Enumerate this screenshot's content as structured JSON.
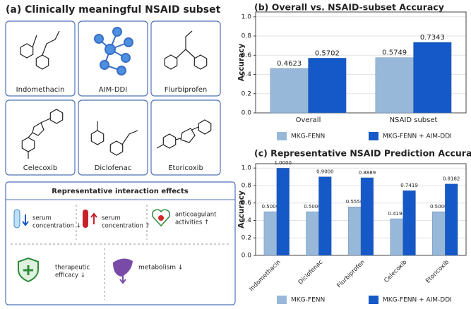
{
  "panel_a": {
    "title": "(a) Clinically meaningful NSAID subset",
    "drugs": [
      "Indomethacin",
      "AIM-DDI",
      "Flurbiprofen",
      "Celecoxib",
      "Diclofenac",
      "Etoricoxib"
    ],
    "effects": {
      "title": "Representative interaction effects",
      "items": [
        {
          "lines": [
            "serum",
            "concentration ↓"
          ]
        },
        {
          "lines": [
            "serum",
            "concentration ↑"
          ]
        },
        {
          "lines": [
            "anticoagulant",
            "activities ↑"
          ]
        },
        {
          "lines": [
            "therapeutic",
            "efficacy ↓"
          ]
        },
        {
          "lines": [
            "metabolism ↓"
          ]
        }
      ]
    }
  },
  "chart_data": [
    {
      "type": "bar",
      "title": "(b) Overall vs. NSAID-subset Accuracy",
      "y_label": "Accuracy",
      "categories": [
        "Overall",
        "NSAID subset"
      ],
      "series": [
        {
          "name": "MKG-FENN",
          "color": "#98b8da",
          "values": [
            0.4623,
            0.5749
          ]
        },
        {
          "name": "MKG-FENN + AIM-DDI",
          "color": "#1558c8",
          "values": [
            0.5702,
            0.7343
          ]
        }
      ],
      "ylim": [
        0,
        1.05
      ],
      "yticks": [
        {
          "value": 0,
          "label": "0.0"
        },
        0.2,
        0.4,
        0.6,
        0.8,
        {
          "value": 1,
          "label": "1.0"
        }
      ],
      "grid": true
    },
    {
      "type": "bar",
      "title": "(c) Representative NSAID Prediction Accuracy",
      "y_label": "Accuracy",
      "categories": [
        "Indomethacin",
        "Diclofenac",
        "Flurbiprofen",
        "Celecoxib",
        "Etoricoxib"
      ],
      "series": [
        {
          "name": "MKG-FENN",
          "color": "#98b8da",
          "values": [
            0.5,
            0.5,
            0.5556,
            0.4194,
            0.5
          ],
          "value_labels": [
            "0.5000",
            "0.5000",
            "0.5556",
            "0.4194",
            "0.5000"
          ]
        },
        {
          "name": "MKG-FENN + AIM-DDI",
          "color": "#1558c8",
          "values": [
            1.0,
            0.9,
            0.8889,
            0.7419,
            0.8182
          ],
          "value_labels": [
            "1.0000",
            "0.9000",
            "0.8889",
            "0.7419",
            "0.8182"
          ]
        }
      ],
      "ylim": [
        0,
        1.05
      ],
      "yticks": [
        {
          "value": 0,
          "label": "0.0"
        },
        0.2,
        0.4,
        0.6,
        0.8,
        {
          "value": 1,
          "label": "1.0"
        }
      ],
      "grid": true
    }
  ]
}
